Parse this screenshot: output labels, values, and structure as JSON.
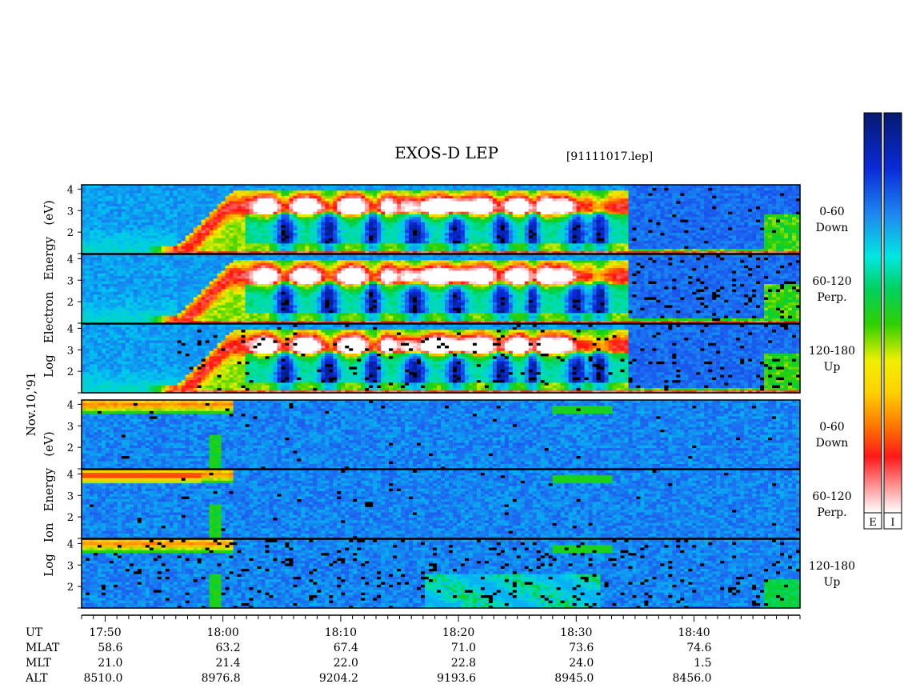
{
  "chart_data": {
    "type": "heatmap",
    "title": "EXOS-D LEP",
    "file_label": "[91111017.lep]",
    "date_label": "Nov.10,'91",
    "panels": [
      {
        "species": "electron",
        "angle_range": "0-60",
        "direction": "Down",
        "ylabel": "",
        "ylim": [
          1,
          4.2
        ],
        "yticks": [
          "2",
          "3",
          "4"
        ]
      },
      {
        "species": "electron",
        "angle_range": "60-120",
        "direction": "Perp.",
        "ylabel": "",
        "ylim": [
          1,
          4.2
        ],
        "yticks": [
          "2",
          "3",
          "4"
        ]
      },
      {
        "species": "electron",
        "angle_range": "120-180",
        "direction": "Up",
        "ylabel": "",
        "ylim": [
          1,
          4.2
        ],
        "yticks": [
          "2",
          "3",
          "4"
        ]
      },
      {
        "species": "ion",
        "angle_range": "0-60",
        "direction": "Down",
        "ylabel": "",
        "ylim": [
          1,
          4.2
        ],
        "yticks": [
          "2",
          "3",
          "4"
        ]
      },
      {
        "species": "ion",
        "angle_range": "60-120",
        "direction": "Perp.",
        "ylabel": "",
        "ylim": [
          1,
          4.2
        ],
        "yticks": [
          "2",
          "3",
          "4"
        ]
      },
      {
        "species": "ion",
        "angle_range": "120-180",
        "direction": "Up",
        "ylabel": "",
        "ylim": [
          1,
          4.2
        ],
        "yticks": [
          "2",
          "3",
          "4"
        ]
      }
    ],
    "group_labels": {
      "electron": [
        "Log",
        "Electron",
        "Energy",
        "(eV)"
      ],
      "ion": [
        "Log",
        "Ion",
        "Energy",
        "(eV)"
      ]
    },
    "x_axis": {
      "unit": "UT",
      "minutes_range": [
        1068,
        1129
      ],
      "ticks": [
        {
          "label": "17:50",
          "minutes": 1070
        },
        {
          "label": "18:00",
          "minutes": 1080
        },
        {
          "label": "18:10",
          "minutes": 1090
        },
        {
          "label": "18:20",
          "minutes": 1100
        },
        {
          "label": "18:30",
          "minutes": 1110
        },
        {
          "label": "18:40",
          "minutes": 1120
        }
      ]
    },
    "ephemeris": {
      "rows": [
        {
          "name": "MLAT",
          "values": [
            "58.6",
            "63.2",
            "67.4",
            "71.0",
            "73.6",
            "74.6"
          ]
        },
        {
          "name": "MLT",
          "values": [
            "21.0",
            "21.4",
            "22.0",
            "22.8",
            "24.0",
            "1.5"
          ]
        },
        {
          "name": "ALT",
          "values": [
            "8510.0",
            "8976.8",
            "9204.2",
            "9193.6",
            "8945.0",
            "8456.0"
          ]
        }
      ]
    },
    "colorbar_labels": [
      "E",
      "I"
    ],
    "colormap": [
      "#061a70",
      "#0a2ae0",
      "#1e66f0",
      "#00c8f0",
      "#00e0a0",
      "#00d040",
      "#30d000",
      "#f0f000",
      "#ff9000",
      "#ff1010",
      "#ffa0a0",
      "#ffffff"
    ]
  }
}
